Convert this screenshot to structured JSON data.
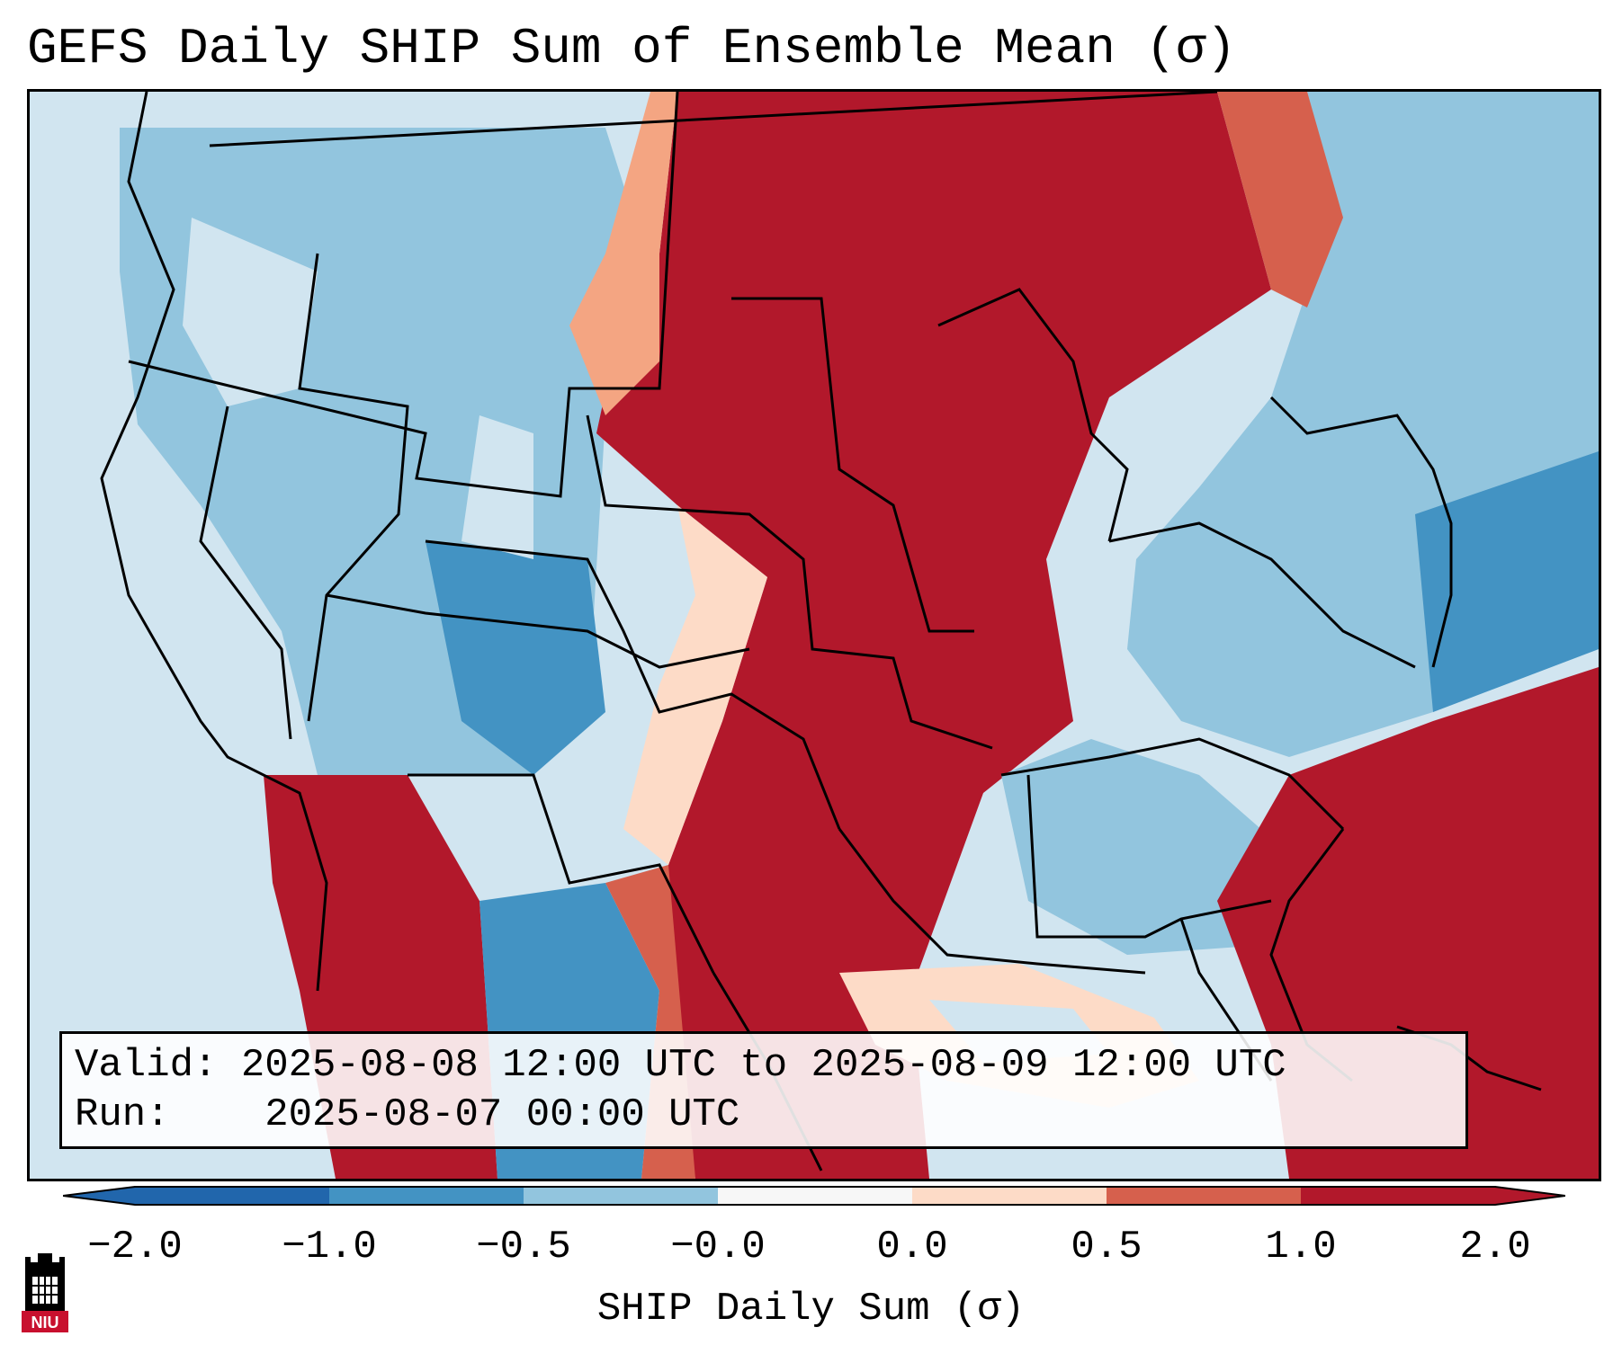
{
  "title": "GEFS Daily SHIP Sum of Ensemble Mean (σ)",
  "info": {
    "valid_label": "Valid:",
    "valid_value": "2025-08-08 12:00 UTC to 2025-08-09 12:00 UTC",
    "run_label": "Run:",
    "run_value": "2025-08-07 00:00 UTC"
  },
  "colorbar": {
    "label": "SHIP Daily Sum (σ)",
    "ticks": [
      "−2.0",
      "−1.0",
      "−0.5",
      "−0.0",
      "0.0",
      "0.5",
      "1.0",
      "2.0"
    ],
    "colors": [
      "#2166ac",
      "#4393c3",
      "#92c5de",
      "#d1e5f0",
      "#f7f7f7",
      "#fddbc7",
      "#f4a582",
      "#d6604d",
      "#b2182b"
    ],
    "extend": "both"
  },
  "map": {
    "region": "Contiguous United States",
    "background": "#d1e5f0",
    "features": [
      "state boundaries",
      "coastlines",
      "country borders"
    ]
  },
  "logo": {
    "text": "NIU",
    "name": "niu-logo-icon"
  }
}
